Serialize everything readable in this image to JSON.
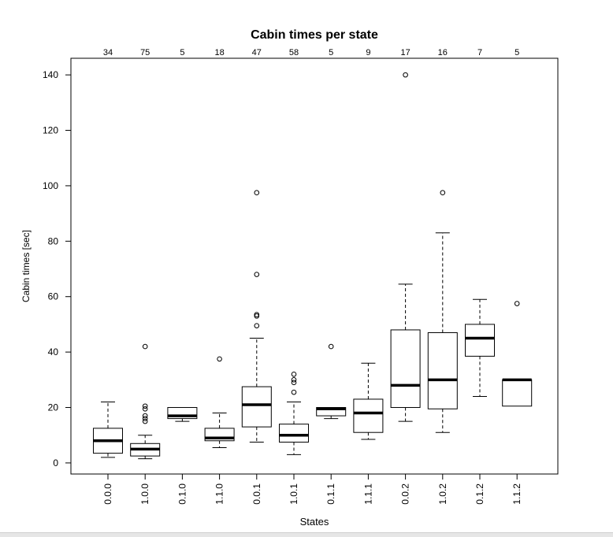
{
  "chart_data": {
    "type": "boxplot",
    "title": "Cabin times per state",
    "xlabel": "States",
    "ylabel": "Cabin times [sec]",
    "ylim": [
      -4,
      146
    ],
    "yticks": [
      0,
      20,
      40,
      60,
      80,
      100,
      120,
      140
    ],
    "grid": false,
    "categories": [
      "0.0.0",
      "1.0.0",
      "0.1.0",
      "1.1.0",
      "0.0.1",
      "1.0.1",
      "0.1.1",
      "1.1.1",
      "0.0.2",
      "1.0.2",
      "0.1.2",
      "1.1.2"
    ],
    "counts": [
      "34",
      "75",
      "5",
      "18",
      "47",
      "58",
      "5",
      "9",
      "17",
      "16",
      "7",
      "5"
    ],
    "boxes": [
      {
        "min": 2,
        "q1": 3.5,
        "median": 8,
        "q3": 12.5,
        "max": 22,
        "outliers": []
      },
      {
        "min": 1.5,
        "q1": 2.5,
        "median": 5,
        "q3": 7,
        "max": 10,
        "outliers": [
          15,
          16,
          17,
          19.5,
          20.5,
          42
        ]
      },
      {
        "min": 15,
        "q1": 16,
        "median": 17,
        "q3": 20,
        "max": 20,
        "outliers": []
      },
      {
        "min": 5.5,
        "q1": 8,
        "median": 9,
        "q3": 12.5,
        "max": 18,
        "outliers": [
          37.5
        ]
      },
      {
        "min": 7.5,
        "q1": 13,
        "median": 21,
        "q3": 27.5,
        "max": 45,
        "outliers": [
          49.5,
          53,
          53.5,
          68,
          97.5
        ]
      },
      {
        "min": 3,
        "q1": 7.5,
        "median": 10,
        "q3": 14,
        "max": 22,
        "outliers": [
          25.5,
          29,
          30,
          32
        ]
      },
      {
        "min": 16,
        "q1": 17,
        "median": 19.5,
        "q3": 20,
        "max": 20,
        "outliers": [
          42
        ]
      },
      {
        "min": 8.5,
        "q1": 11,
        "median": 18,
        "q3": 23,
        "max": 36,
        "outliers": []
      },
      {
        "min": 15,
        "q1": 20,
        "median": 28,
        "q3": 48,
        "max": 64.5,
        "outliers": [
          140
        ]
      },
      {
        "min": 11,
        "q1": 19.5,
        "median": 30,
        "q3": 47,
        "max": 83,
        "outliers": [
          97.5
        ]
      },
      {
        "min": 24,
        "q1": 38.5,
        "median": 45,
        "q3": 50,
        "max": 59,
        "outliers": []
      },
      {
        "min": 20.5,
        "q1": 20.5,
        "median": 30,
        "q3": 30,
        "max": 30,
        "outliers": [
          57.5
        ]
      }
    ]
  }
}
